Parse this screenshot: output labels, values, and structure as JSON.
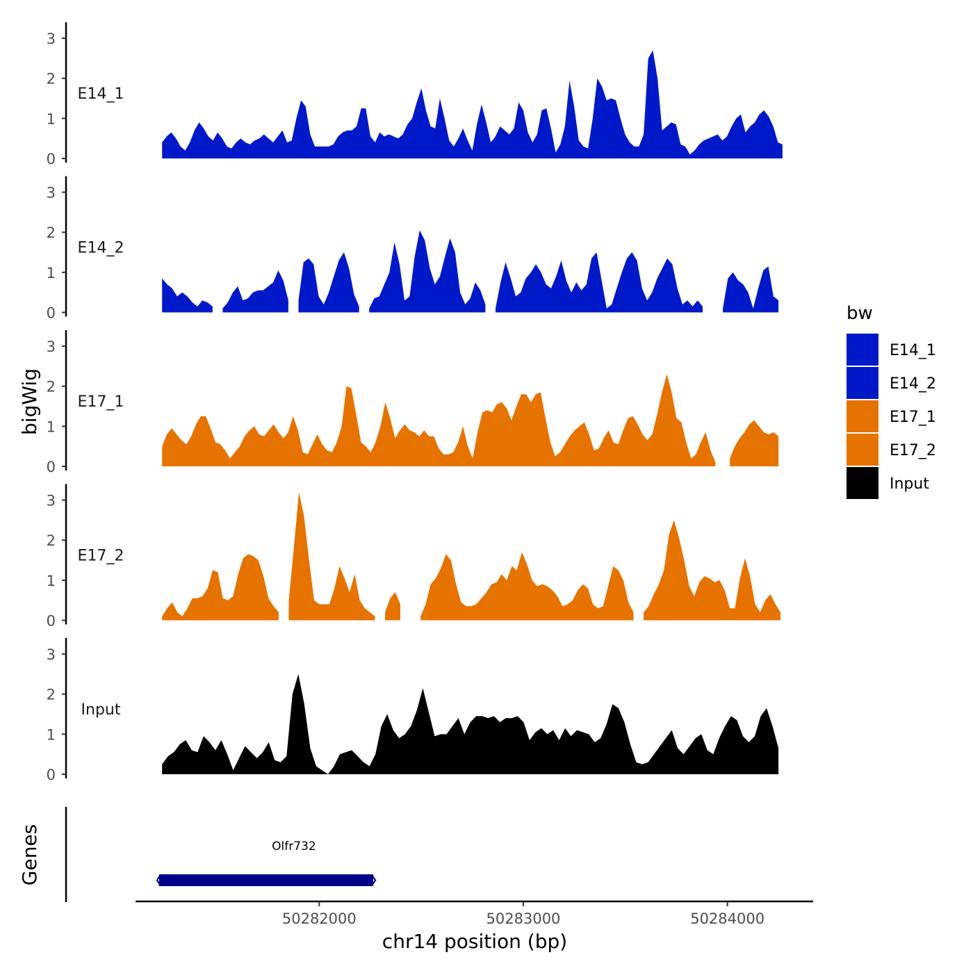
{
  "chart_data": {
    "type": "area",
    "xlabel": "chr14 position (bp)",
    "ylabel": "bigWig",
    "genes_label": "Genes",
    "xlim": [
      50281100,
      50284420
    ],
    "ylim": [
      0,
      3.4
    ],
    "y_ticks": [
      0,
      1,
      2,
      3
    ],
    "x_ticks": [
      50282000,
      50283000,
      50284000
    ],
    "x_tick_labels": [
      "50282000",
      "50283000",
      "50284000"
    ],
    "legend_title": "bw",
    "legend": [
      {
        "name": "E14_1",
        "color": "#0019C8"
      },
      {
        "name": "E14_2",
        "color": "#0019C8"
      },
      {
        "name": "E17_1",
        "color": "#E67300"
      },
      {
        "name": "E17_2",
        "color": "#E67300"
      },
      {
        "name": "Input",
        "color": "#000000"
      }
    ],
    "series": [
      {
        "name": "E14_1",
        "color": "#0019C8",
        "x_start": 50281230,
        "x_end": 50284270,
        "values": [
          0.4,
          0.55,
          0.65,
          0.5,
          0.3,
          0.2,
          0.4,
          0.7,
          0.9,
          0.75,
          0.55,
          0.45,
          0.65,
          0.5,
          0.3,
          0.25,
          0.4,
          0.5,
          0.4,
          0.35,
          0.45,
          0.5,
          0.6,
          0.5,
          0.4,
          0.55,
          0.7,
          0.4,
          0.45,
          1.0,
          1.45,
          1.3,
          0.6,
          0.3,
          0.3,
          0.3,
          0.3,
          0.35,
          0.55,
          0.65,
          0.7,
          0.7,
          0.8,
          1.25,
          1.25,
          0.55,
          0.4,
          0.65,
          0.55,
          0.6,
          0.55,
          0.5,
          0.6,
          0.85,
          1.0,
          1.4,
          1.75,
          1.2,
          0.8,
          0.75,
          1.5,
          1.0,
          0.45,
          0.3,
          0.5,
          0.75,
          0.45,
          0.2,
          0.85,
          1.35,
          0.9,
          0.4,
          0.55,
          0.8,
          0.7,
          0.6,
          0.75,
          1.4,
          1.2,
          0.65,
          0.4,
          0.6,
          1.2,
          1.25,
          0.75,
          0.15,
          0.35,
          0.8,
          1.95,
          1.3,
          0.45,
          0.3,
          0.25,
          1.0,
          2.0,
          1.8,
          1.45,
          1.5,
          1.45,
          1.0,
          0.6,
          0.4,
          0.3,
          0.3,
          0.6,
          2.5,
          2.7,
          2.0,
          0.7,
          0.8,
          0.9,
          0.85,
          0.35,
          0.3,
          0.1,
          0.2,
          0.35,
          0.45,
          0.5,
          0.55,
          0.6,
          0.45,
          0.55,
          0.8,
          1.0,
          1.1,
          0.65,
          0.8,
          0.9,
          1.1,
          1.2,
          1.05,
          0.8,
          0.4,
          0.35
        ]
      },
      {
        "name": "E14_2",
        "color": "#0019C8",
        "x_start": 50281230,
        "x_end": 50284250,
        "values": [
          0.85,
          0.7,
          0.6,
          0.4,
          0.5,
          0.4,
          0.25,
          0.15,
          0.3,
          0.25,
          0.15,
          null,
          0.1,
          0.25,
          0.5,
          0.65,
          0.3,
          0.35,
          0.5,
          0.55,
          0.55,
          0.65,
          0.75,
          1.05,
          0.8,
          0.3,
          null,
          0.3,
          1.25,
          1.35,
          1.2,
          0.4,
          0.2,
          0.5,
          0.9,
          1.3,
          1.5,
          1.1,
          0.45,
          0.15,
          null,
          0.1,
          0.35,
          0.4,
          0.7,
          1.0,
          1.75,
          1.2,
          0.3,
          0.4,
          1.4,
          2.05,
          1.8,
          1.1,
          0.7,
          0.9,
          1.4,
          1.85,
          1.5,
          0.5,
          0.2,
          0.35,
          0.75,
          0.55,
          0.2,
          null,
          0.1,
          0.75,
          1.25,
          0.85,
          0.4,
          0.5,
          0.85,
          1.0,
          1.2,
          1.0,
          0.7,
          0.6,
          0.9,
          1.3,
          0.8,
          0.5,
          0.75,
          0.55,
          0.7,
          1.35,
          1.5,
          0.8,
          0.1,
          0.2,
          0.6,
          1.0,
          1.35,
          1.5,
          1.3,
          0.6,
          0.3,
          0.5,
          0.85,
          1.1,
          1.35,
          1.2,
          0.6,
          0.2,
          0.3,
          0.15,
          0.3,
          0.15,
          null,
          null,
          null,
          0.1,
          0.85,
          1.0,
          0.8,
          0.7,
          0.5,
          0.1,
          0.6,
          1.05,
          1.15,
          0.4,
          0.3
        ]
      },
      {
        "name": "E17_1",
        "color": "#E67300",
        "x_start": 50281230,
        "x_end": 50284250,
        "values": [
          0.5,
          0.8,
          0.95,
          0.8,
          0.65,
          0.55,
          0.75,
          1.05,
          1.25,
          1.25,
          0.95,
          0.6,
          0.55,
          0.4,
          0.2,
          0.35,
          0.5,
          0.75,
          0.9,
          1.0,
          0.8,
          0.75,
          0.9,
          1.05,
          0.85,
          0.7,
          0.85,
          1.25,
          0.9,
          0.35,
          0.3,
          0.55,
          0.8,
          0.55,
          0.4,
          0.35,
          0.6,
          1.0,
          2.0,
          1.95,
          1.3,
          0.6,
          0.5,
          0.35,
          0.6,
          1.0,
          1.6,
          1.2,
          0.7,
          0.9,
          1.05,
          0.9,
          0.85,
          0.75,
          0.9,
          0.75,
          0.75,
          0.45,
          0.3,
          0.3,
          0.35,
          0.6,
          1.0,
          0.5,
          0.2,
          0.85,
          1.35,
          1.4,
          1.35,
          1.55,
          1.6,
          1.45,
          1.15,
          1.5,
          1.8,
          1.8,
          1.6,
          1.8,
          1.85,
          1.2,
          0.6,
          0.25,
          0.35,
          0.55,
          0.75,
          0.9,
          1.0,
          1.1,
          0.8,
          0.4,
          0.45,
          0.7,
          0.9,
          0.6,
          0.55,
          0.9,
          1.2,
          1.25,
          1.05,
          0.8,
          0.65,
          0.8,
          1.3,
          1.85,
          2.3,
          1.85,
          1.2,
          1.1,
          0.6,
          0.2,
          0.3,
          0.6,
          0.85,
          0.4,
          0.1,
          null,
          null,
          0.2,
          0.5,
          0.7,
          0.85,
          1.05,
          1.15,
          1.0,
          0.85,
          0.8,
          0.85,
          0.75
        ]
      },
      {
        "name": "E17_2",
        "color": "#E67300",
        "x_start": 50281230,
        "x_end": 50284260,
        "values": [
          0.1,
          0.3,
          0.45,
          0.2,
          0.1,
          0.3,
          0.55,
          0.55,
          0.6,
          0.8,
          1.25,
          1.2,
          0.55,
          0.5,
          0.6,
          1.15,
          1.55,
          1.65,
          1.6,
          1.5,
          1.1,
          0.55,
          0.35,
          0.2,
          null,
          0.5,
          1.8,
          3.2,
          2.6,
          1.5,
          0.5,
          0.4,
          0.4,
          0.4,
          0.8,
          1.35,
          1.05,
          0.7,
          1.15,
          0.5,
          0.3,
          0.2,
          0.1,
          null,
          0.2,
          0.55,
          0.7,
          0.4,
          null,
          null,
          null,
          0.1,
          0.4,
          0.9,
          1.05,
          1.3,
          1.65,
          1.5,
          0.9,
          0.45,
          0.35,
          0.35,
          0.4,
          0.55,
          0.7,
          0.9,
          0.95,
          1.15,
          1.0,
          1.35,
          1.25,
          1.7,
          1.4,
          1.0,
          0.85,
          0.9,
          0.85,
          0.75,
          0.6,
          0.35,
          0.4,
          0.5,
          0.75,
          0.9,
          0.8,
          0.4,
          0.3,
          0.35,
          0.85,
          1.35,
          1.25,
          1.0,
          0.45,
          0.2,
          null,
          0.2,
          0.35,
          0.65,
          0.9,
          1.25,
          2.15,
          2.5,
          2.05,
          1.5,
          0.85,
          0.6,
          0.95,
          1.1,
          1.05,
          0.95,
          1.0,
          0.75,
          0.3,
          0.3,
          1.05,
          1.55,
          1.1,
          0.4,
          0.2,
          0.5,
          0.65,
          0.4,
          0.2
        ]
      },
      {
        "name": "Input",
        "color": "#000000",
        "x_start": 50281230,
        "x_end": 50284250,
        "values": [
          0.25,
          0.45,
          0.55,
          0.75,
          0.85,
          0.6,
          0.55,
          0.95,
          0.8,
          0.6,
          0.85,
          0.5,
          0.1,
          0.4,
          0.7,
          0.55,
          0.4,
          0.55,
          0.8,
          0.35,
          0.3,
          0.45,
          2.0,
          2.5,
          1.75,
          0.65,
          0.2,
          0.1,
          0.0,
          0.2,
          0.5,
          0.55,
          0.6,
          0.45,
          0.3,
          0.2,
          0.5,
          1.2,
          1.5,
          1.1,
          0.9,
          1.0,
          1.2,
          1.6,
          2.15,
          1.55,
          0.95,
          1.0,
          1.0,
          1.2,
          1.4,
          1.0,
          1.3,
          1.45,
          1.45,
          1.4,
          1.45,
          1.3,
          1.4,
          1.4,
          1.45,
          1.3,
          0.85,
          1.05,
          1.15,
          1.0,
          1.1,
          0.85,
          1.15,
          0.95,
          1.1,
          1.05,
          1.0,
          0.8,
          0.9,
          1.25,
          1.75,
          1.65,
          1.3,
          0.75,
          0.3,
          0.25,
          0.3,
          0.5,
          0.7,
          0.9,
          1.1,
          0.65,
          0.5,
          0.7,
          0.9,
          1.0,
          0.6,
          0.5,
          0.9,
          1.2,
          1.45,
          1.35,
          0.95,
          0.8,
          0.95,
          1.45,
          1.65,
          1.2,
          0.65
        ]
      }
    ],
    "genes": [
      {
        "name": "Olfr732",
        "start": 50281215,
        "end": 50282265,
        "strand": "-",
        "color": "#00008B"
      }
    ]
  }
}
